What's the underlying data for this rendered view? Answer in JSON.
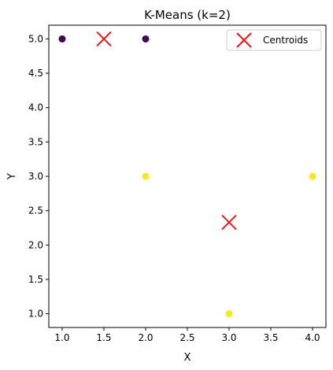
{
  "chart_data": {
    "type": "scatter",
    "title": "K-Means (k=2)",
    "xlabel": "X",
    "ylabel": "Y",
    "xlim": [
      0.84,
      4.16
    ],
    "ylim": [
      0.8,
      5.2
    ],
    "x_ticks": [
      "1.0",
      "1.5",
      "2.0",
      "2.5",
      "3.0",
      "3.5",
      "4.0"
    ],
    "y_ticks": [
      "1.0",
      "1.5",
      "2.0",
      "2.5",
      "3.0",
      "3.5",
      "4.0",
      "4.5",
      "5.0"
    ],
    "grid": false,
    "legend_position": "top-right",
    "clusters": [
      {
        "color": "#440154",
        "points": [
          [
            1,
            5
          ],
          [
            2,
            5
          ]
        ]
      },
      {
        "color": "#fde725",
        "points": [
          [
            2,
            3
          ],
          [
            3,
            1
          ],
          [
            4,
            3
          ]
        ]
      }
    ],
    "centroids": {
      "name": "Centroids",
      "color": "#e31a1c",
      "marker": "x",
      "points": [
        [
          1.5,
          5.0
        ],
        [
          3.0,
          2.33
        ]
      ]
    }
  }
}
